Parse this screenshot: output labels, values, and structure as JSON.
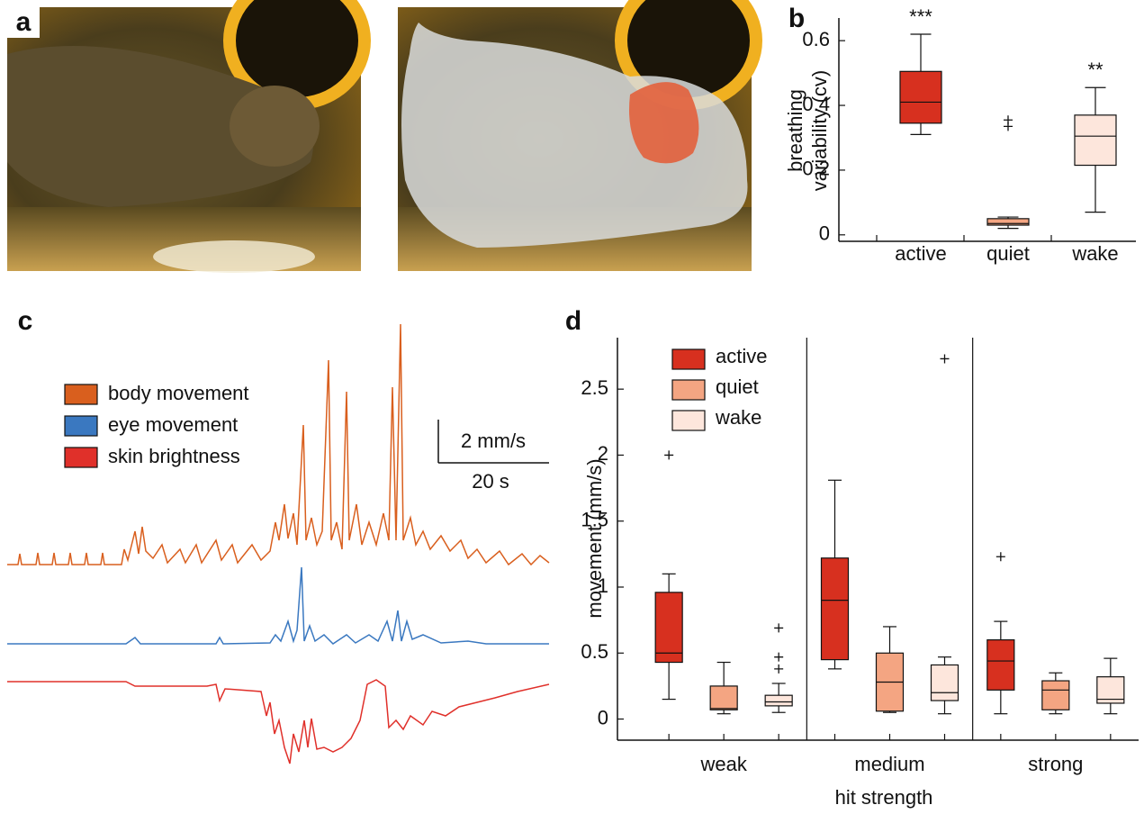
{
  "panel_labels": [
    "a",
    "b",
    "c",
    "d"
  ],
  "chart_data": [
    {
      "type": "box",
      "ylabel": [
        "breathing",
        "variability (cv)"
      ],
      "categories": [
        "active",
        "quiet",
        "wake"
      ],
      "colors": [
        "#d7301f",
        "#f4a582",
        "#fde6dc"
      ],
      "annotations": [
        "***",
        null,
        "**"
      ],
      "values": [
        {
          "min": 0.31,
          "q1": 0.345,
          "median": 0.41,
          "q3": 0.505,
          "max": 0.62,
          "outliers": []
        },
        {
          "min": 0.02,
          "q1": 0.03,
          "median": 0.035,
          "q3": 0.05,
          "max": 0.055,
          "outliers": [
            0.335,
            0.355
          ]
        },
        {
          "min": 0.07,
          "q1": 0.215,
          "median": 0.305,
          "q3": 0.37,
          "max": 0.455,
          "outliers": []
        }
      ],
      "ylim": [
        -0.02,
        0.67
      ],
      "yticks": [
        0,
        0.2,
        0.4,
        0.6
      ]
    },
    {
      "type": "trace",
      "series": [
        {
          "name": "body movement",
          "color": "#d95f1e"
        },
        {
          "name": "eye movement",
          "color": "#3a78c0"
        },
        {
          "name": "skin brightness",
          "color": "#e0302a"
        }
      ],
      "scale_bar": {
        "y": "2 mm/s",
        "x": "20 s"
      }
    },
    {
      "type": "grouped-box",
      "xlabel": "hit strength",
      "ylabel": "movement (mm/s)",
      "categories": [
        "weak",
        "medium",
        "strong"
      ],
      "series": [
        {
          "name": "active",
          "color": "#d7301f",
          "values": [
            {
              "min": 0.15,
              "q1": 0.43,
              "median": 0.5,
              "q3": 0.96,
              "max": 1.1,
              "outliers": [
                2.0
              ]
            },
            {
              "min": 0.38,
              "q1": 0.45,
              "median": 0.9,
              "q3": 1.22,
              "max": 1.81,
              "outliers": []
            },
            {
              "min": 0.04,
              "q1": 0.22,
              "median": 0.44,
              "q3": 0.6,
              "max": 0.74,
              "outliers": [
                1.23
              ]
            }
          ]
        },
        {
          "name": "quiet",
          "color": "#f4a582",
          "values": [
            {
              "min": 0.04,
              "q1": 0.07,
              "median": 0.08,
              "q3": 0.25,
              "max": 0.43,
              "outliers": []
            },
            {
              "min": 0.05,
              "q1": 0.06,
              "median": 0.28,
              "q3": 0.5,
              "max": 0.7,
              "outliers": []
            },
            {
              "min": 0.04,
              "q1": 0.07,
              "median": 0.22,
              "q3": 0.29,
              "max": 0.35,
              "outliers": []
            }
          ]
        },
        {
          "name": "wake",
          "color": "#fde6dc",
          "values": [
            {
              "min": 0.05,
              "q1": 0.1,
              "median": 0.13,
              "q3": 0.18,
              "max": 0.27,
              "outliers": [
                0.38,
                0.47,
                0.69
              ]
            },
            {
              "min": 0.04,
              "q1": 0.14,
              "median": 0.2,
              "q3": 0.41,
              "max": 0.47,
              "outliers": [
                2.73
              ]
            },
            {
              "min": 0.04,
              "q1": 0.12,
              "median": 0.15,
              "q3": 0.32,
              "max": 0.46,
              "outliers": []
            }
          ]
        }
      ],
      "ylim": [
        -0.16,
        2.89
      ],
      "yticks": [
        0,
        0.5,
        1,
        1.5,
        2,
        2.5
      ]
    }
  ]
}
